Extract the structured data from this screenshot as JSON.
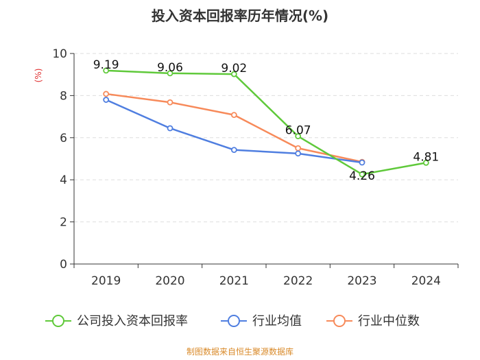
{
  "chart_data": {
    "type": "line",
    "title": "投入资本回报率历年情况(%)",
    "ylabel": "(%)",
    "xlabel": "",
    "categories": [
      "2019",
      "2020",
      "2021",
      "2022",
      "2023",
      "2024"
    ],
    "ylim": [
      0,
      10
    ],
    "yticks": [
      0,
      2,
      4,
      6,
      8,
      10
    ],
    "grid": true,
    "legend_position": "bottom",
    "series": [
      {
        "name": "公司投入资本回报率",
        "color": "#5fc93a",
        "values": [
          9.19,
          9.06,
          9.02,
          6.07,
          4.26,
          4.81
        ],
        "data_labels": [
          "9.19",
          "9.06",
          "9.02",
          "6.07",
          "4.26",
          "4.81"
        ]
      },
      {
        "name": "行业均值",
        "color": "#4f7ee0",
        "values": [
          7.8,
          6.45,
          5.42,
          5.25,
          4.82,
          null
        ]
      },
      {
        "name": "行业中位数",
        "color": "#f78a5a",
        "values": [
          8.08,
          7.68,
          7.08,
          5.5,
          4.85,
          null
        ]
      }
    ]
  },
  "source": "制图数据来自恒生聚源数据库",
  "colors": {
    "title": "#333333",
    "axis": "#333333",
    "grid": "#dddddd",
    "ylabel": "#e03030",
    "source": "#d98a2a"
  }
}
